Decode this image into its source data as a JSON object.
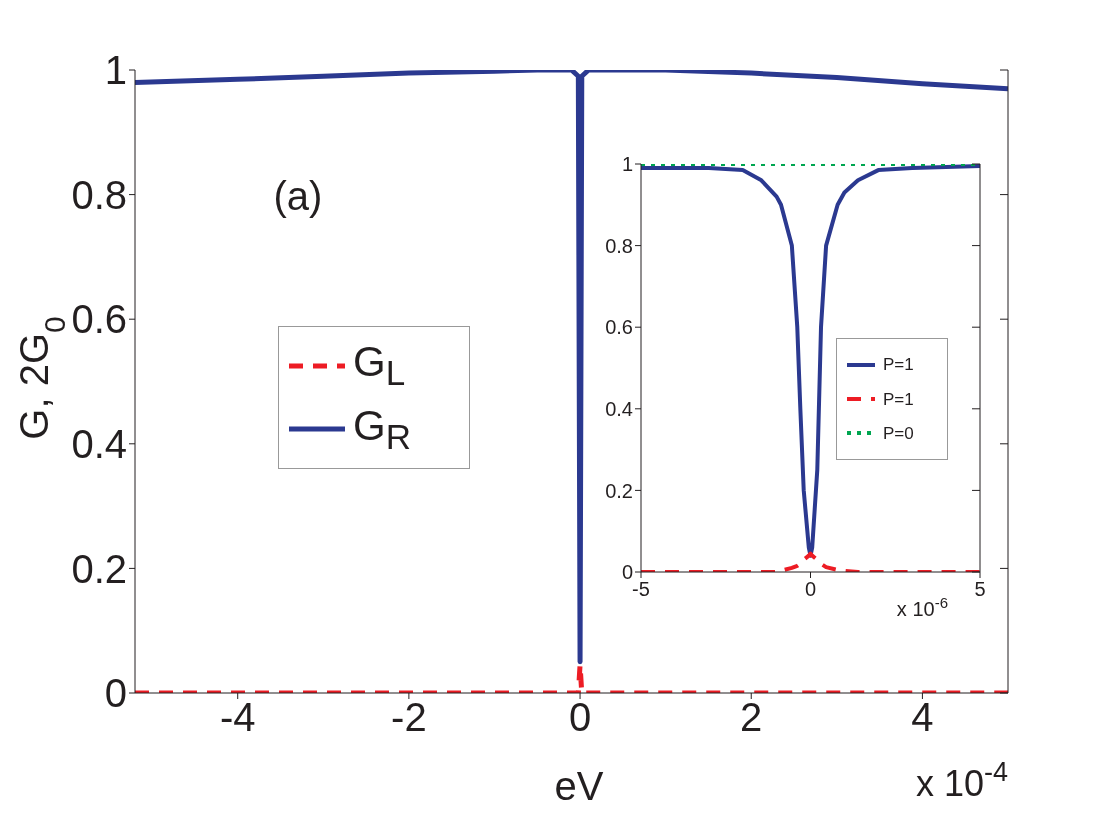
{
  "chart_data": [
    {
      "type": "line",
      "xlabel": "eV",
      "ylabel": "G, 2G$_{0}$",
      "annotations": [
        "(a)",
        "x 10$^{-4}$"
      ],
      "x": [
        -5.2,
        -4,
        -3,
        -2,
        -1,
        -0.5,
        -0.1,
        -0.02,
        0,
        0.02,
        0.1,
        0.5,
        1,
        2,
        3,
        4,
        5
      ],
      "series": [
        {
          "name": "G$_{L}$",
          "color": "#ed1c24",
          "line_style": "dashed",
          "values": [
            0,
            0,
            0,
            0,
            0,
            0,
            0,
            0,
            0.045,
            0,
            0,
            0,
            0,
            0,
            0,
            0,
            0
          ]
        },
        {
          "name": "G$_{R}$",
          "color": "#2b3990",
          "line_style": "solid",
          "values": [
            0.98,
            0.985,
            0.99,
            0.995,
            0.998,
            1,
            1,
            0.99,
            0.05,
            0.99,
            1,
            1,
            1,
            0.995,
            0.988,
            0.978,
            0.97
          ]
        }
      ],
      "xlim": [
        -5.2,
        5
      ],
      "ylim": [
        0,
        1
      ],
      "xticks": [
        -4,
        -2,
        0,
        2,
        4
      ],
      "yticks": [
        0,
        0.2,
        0.4,
        0.6,
        0.8,
        1
      ],
      "grid": false,
      "legend": "left",
      "marker": "none"
    },
    {
      "type": "line",
      "annotations": [
        "x 10$^{-6}$"
      ],
      "x": [
        -5,
        -3,
        -2,
        -1.45,
        -1,
        -0.87,
        -0.55,
        -0.39,
        -0.3,
        -0.2,
        -0.05,
        0,
        0.05,
        0.2,
        0.31,
        0.46,
        0.8,
        1,
        1.4,
        2,
        3,
        5
      ],
      "series": [
        {
          "name": "P=1",
          "color": "#2b3990",
          "line_style": "solid",
          "values": [
            0.99,
            0.99,
            0.985,
            0.96,
            0.92,
            0.9,
            0.8,
            0.6,
            0.4,
            0.2,
            0.06,
            0.04,
            0.06,
            0.25,
            0.6,
            0.8,
            0.9,
            0.93,
            0.96,
            0.985,
            0.99,
            0.995
          ]
        },
        {
          "name": "P=1",
          "color": "#ed1c24",
          "line_style": "dashed",
          "values": [
            0,
            0,
            0,
            0,
            0,
            0.003,
            0.01,
            0.015,
            0.02,
            0.03,
            0.04,
            0.045,
            0.04,
            0.03,
            0.02,
            0.012,
            0.005,
            0.003,
            0,
            0,
            0,
            0
          ]
        },
        {
          "name": "P=0",
          "color": "#00a651",
          "line_style": "dotted",
          "values": [
            1,
            1,
            1,
            1,
            1,
            1,
            1,
            1,
            1,
            1,
            1,
            1,
            1,
            1,
            1,
            1,
            1,
            1,
            1,
            1,
            1,
            1
          ]
        }
      ],
      "xlim": [
        -5,
        5
      ],
      "ylim": [
        0,
        1
      ],
      "xticks": [
        -5,
        0,
        5
      ],
      "yticks": [
        0,
        0.2,
        0.4,
        0.6,
        0.8,
        1
      ],
      "grid": false,
      "legend": "right",
      "marker": "none"
    }
  ]
}
